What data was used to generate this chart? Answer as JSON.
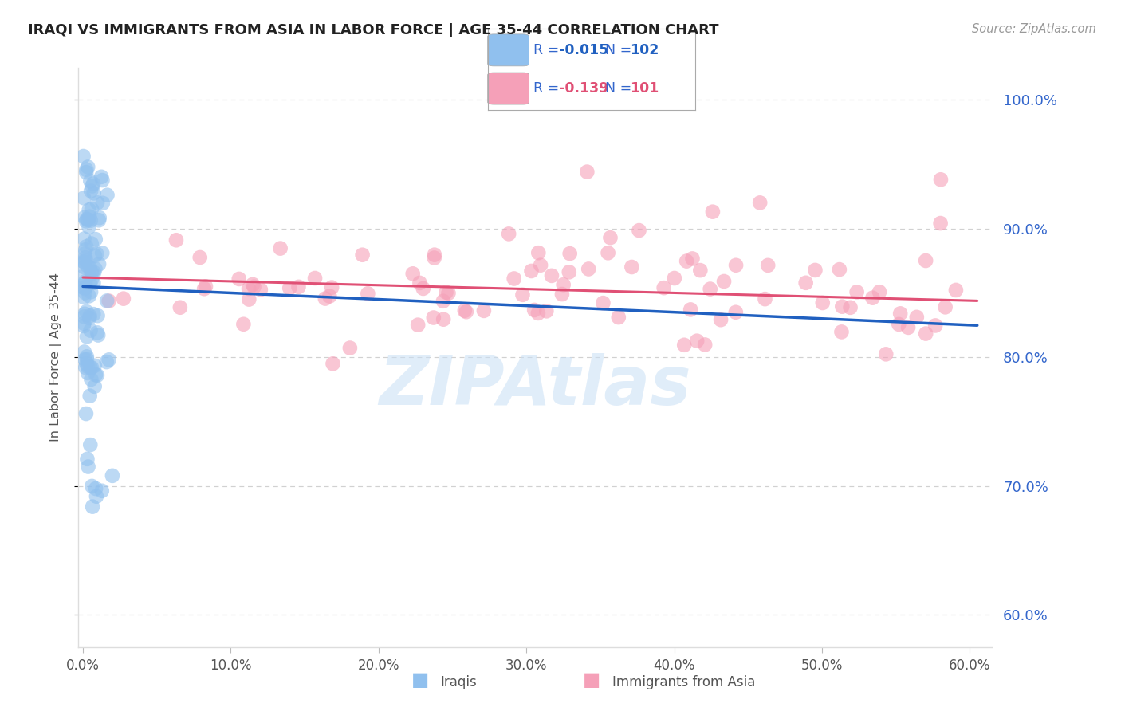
{
  "title": "IRAQI VS IMMIGRANTS FROM ASIA IN LABOR FORCE | AGE 35-44 CORRELATION CHART",
  "source": "Source: ZipAtlas.com",
  "ylabel": "In Labor Force | Age 35-44",
  "xlim": [
    -0.003,
    0.615
  ],
  "ylim": [
    0.575,
    1.025
  ],
  "ytick_labels": [
    "60.0%",
    "70.0%",
    "80.0%",
    "90.0%",
    "100.0%"
  ],
  "ytick_values": [
    0.6,
    0.7,
    0.8,
    0.9,
    1.0
  ],
  "xtick_labels": [
    "0.0%",
    "10.0%",
    "20.0%",
    "30.0%",
    "40.0%",
    "50.0%",
    "60.0%"
  ],
  "xtick_values": [
    0.0,
    0.1,
    0.2,
    0.3,
    0.4,
    0.5,
    0.6
  ],
  "iraqi_R": -0.015,
  "iraqi_N": 102,
  "asia_R": -0.139,
  "asia_N": 101,
  "iraqi_dot_color": "#90C0EE",
  "asia_dot_color": "#F5A0B8",
  "iraqi_line_color": "#2060C0",
  "asia_line_color": "#E05075",
  "grid_color": "#CCCCCC",
  "title_color": "#222222",
  "right_axis_color": "#3366CC",
  "legend_text_color": "#3366CC",
  "legend_R_color": "#3355AA",
  "watermark_color": "#C8DFF5",
  "legend_iraqi": "Iraqis",
  "legend_asia": "Immigrants from Asia",
  "watermark": "ZIPAtlas"
}
